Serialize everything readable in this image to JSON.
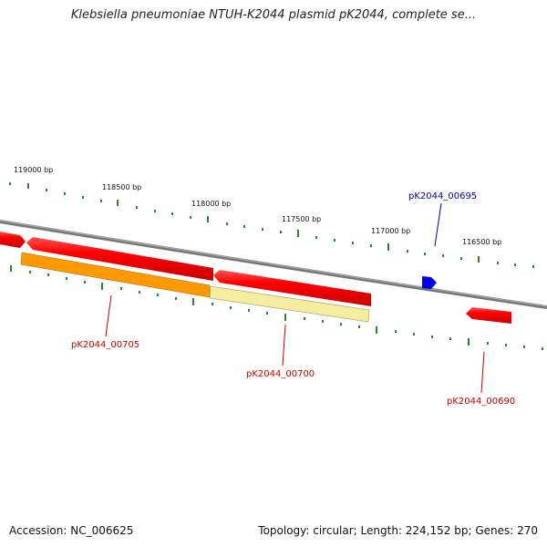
{
  "title": "Klebsiella pneumoniae NTUH-K2044 plasmid pK2044, complete se...",
  "footer": {
    "accession": "Accession: NC_006625",
    "summary": "Topology: circular; Length: 224,152 bp; Genes: 270"
  },
  "ruler": {
    "labels": [
      "119000 bp",
      "118500 bp",
      "118000 bp",
      "117500 bp",
      "117000 bp",
      "116500 bp"
    ]
  },
  "genes": [
    {
      "name": "pK2044_00705",
      "color": "#cc0000"
    },
    {
      "name": "pK2044_00700",
      "color": "#cc0000"
    },
    {
      "name": "pK2044_00695",
      "color": "#0000aa"
    },
    {
      "name": "pK2044_00690",
      "color": "#cc0000"
    }
  ],
  "colors": {
    "backbone": "#808080",
    "cds": "#ff0000",
    "feature_orange": "#ff9900",
    "feature_yellow": "#f5eea0",
    "ticks": "#2a8a2a",
    "small_gene": "#0000ee"
  }
}
